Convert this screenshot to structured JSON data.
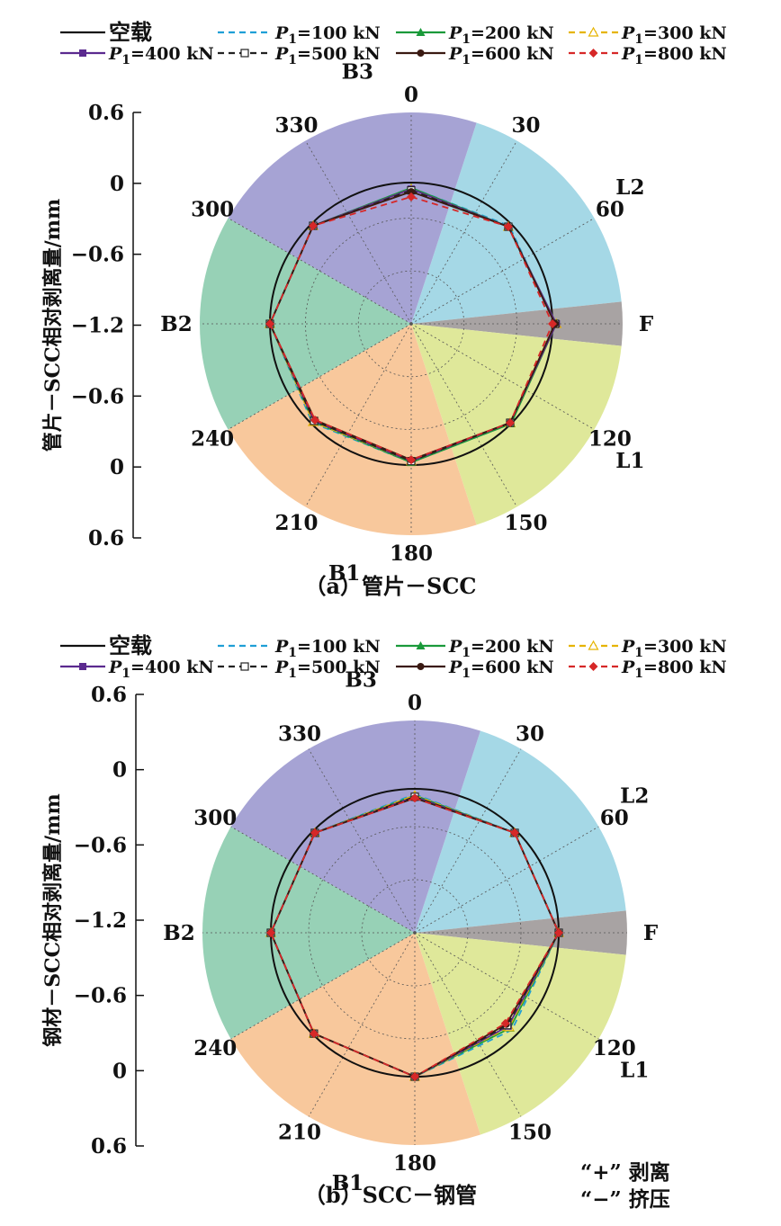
{
  "legend": {
    "entries": [
      {
        "label": "空载",
        "color": "#111111",
        "dash": "",
        "marker": "none"
      },
      {
        "label": "=100 kN",
        "color": "#1f9fd6",
        "dash": "7,5",
        "marker": "none"
      },
      {
        "label": "=200 kN",
        "color": "#1a9a3a",
        "dash": "",
        "marker": "tri"
      },
      {
        "label": "=300 kN",
        "color": "#e6b400",
        "dash": "7,5",
        "marker": "tri-open"
      },
      {
        "label": "=400 kN",
        "color": "#5b2a8f",
        "dash": "",
        "marker": "square"
      },
      {
        "label": "=500 kN",
        "color": "#222222",
        "dash": "7,5",
        "marker": "square-open"
      },
      {
        "label": "=600 kN",
        "color": "#3a1a12",
        "dash": "",
        "marker": "circle"
      },
      {
        "label": "=800 kN",
        "color": "#d62828",
        "dash": "7,5",
        "marker": "diamond"
      }
    ],
    "p_symbol": "P",
    "p_subscript": "1"
  },
  "chart_data": [
    {
      "type": "line",
      "subtype": "polar",
      "caption": "（a）管片－SCC",
      "ylabel": "管片－SCC相对剥离量/mm",
      "radial_ticks": [
        "0.6",
        "0",
        "−0.6",
        "−1.2",
        "−0.6",
        "0",
        "0.6"
      ],
      "radial_range": [
        -1.2,
        0.6
      ],
      "angle_ticks": [
        "0",
        "30",
        "60",
        "120",
        "150",
        "180",
        "210",
        "240",
        "300",
        "330"
      ],
      "sectors": [
        {
          "label": "L2",
          "from": 18,
          "to": 84,
          "color": "#a5d8e6"
        },
        {
          "label": "F",
          "from": 84,
          "to": 96,
          "color": "#a8a3a3"
        },
        {
          "label": "L1",
          "from": 96,
          "to": 162,
          "color": "#dfe89a"
        },
        {
          "label": "B1",
          "from": 162,
          "to": 240,
          "color": "#f8c89c"
        },
        {
          "label": "B2",
          "from": 240,
          "to": 300,
          "color": "#97d1b6"
        },
        {
          "label": "B3",
          "from": 300,
          "to": 378,
          "color": "#a6a3d4"
        }
      ],
      "angles": [
        0,
        45,
        90,
        135,
        180,
        225,
        270,
        315
      ],
      "series": [
        {
          "name": "空载",
          "values": [
            0,
            0,
            0,
            0,
            0,
            0,
            0,
            0
          ]
        },
        {
          "name": "P1=100 kN",
          "values": [
            -0.04,
            -0.02,
            0.02,
            0.0,
            -0.02,
            -0.01,
            0.0,
            -0.02
          ]
        },
        {
          "name": "P1=200 kN",
          "values": [
            -0.04,
            -0.03,
            0.03,
            0.0,
            -0.02,
            -0.02,
            0.0,
            -0.02
          ]
        },
        {
          "name": "P1=300 kN",
          "values": [
            -0.05,
            -0.03,
            0.03,
            -0.01,
            -0.03,
            -0.02,
            0.0,
            -0.02
          ]
        },
        {
          "name": "P1=400 kN",
          "values": [
            -0.05,
            -0.03,
            0.03,
            -0.01,
            -0.03,
            -0.03,
            0.0,
            -0.02
          ]
        },
        {
          "name": "P1=500 kN",
          "values": [
            -0.06,
            -0.03,
            0.02,
            -0.01,
            -0.03,
            -0.03,
            0.0,
            -0.02
          ]
        },
        {
          "name": "P1=600 kN",
          "values": [
            -0.07,
            -0.03,
            0.02,
            -0.01,
            -0.04,
            -0.04,
            0.0,
            -0.02
          ]
        },
        {
          "name": "P1=800 kN",
          "values": [
            -0.11,
            -0.03,
            0.0,
            -0.01,
            -0.04,
            -0.04,
            0.0,
            -0.02
          ]
        }
      ]
    },
    {
      "type": "line",
      "subtype": "polar",
      "caption": "（b）SCC－钢管",
      "ylabel": "钢材－SCC相对剥离量/mm",
      "radial_ticks": [
        "0.6",
        "0",
        "−0.6",
        "−1.2",
        "−0.6",
        "0",
        "0.6"
      ],
      "radial_range": [
        -1.2,
        0.6
      ],
      "angle_ticks": [
        "0",
        "30",
        "60",
        "120",
        "150",
        "180",
        "210",
        "240",
        "300",
        "330"
      ],
      "sectors": [
        {
          "label": "L2",
          "from": 18,
          "to": 84,
          "color": "#a5d8e6"
        },
        {
          "label": "F",
          "from": 84,
          "to": 96,
          "color": "#a8a3a3"
        },
        {
          "label": "L1",
          "from": 96,
          "to": 162,
          "color": "#dfe89a"
        },
        {
          "label": "B1",
          "from": 162,
          "to": 240,
          "color": "#f8c89c"
        },
        {
          "label": "B2",
          "from": 240,
          "to": 300,
          "color": "#97d1b6"
        },
        {
          "label": "B3",
          "from": 300,
          "to": 378,
          "color": "#a6a3d4"
        }
      ],
      "angles": [
        0,
        45,
        90,
        135,
        180,
        225,
        270,
        315
      ],
      "series": [
        {
          "name": "空载",
          "values": [
            0,
            0,
            0,
            0,
            0,
            0,
            0,
            0
          ]
        },
        {
          "name": "P1=100 kN",
          "values": [
            -0.04,
            -0.02,
            0.0,
            -0.05,
            0.0,
            -0.01,
            0.0,
            -0.02
          ]
        },
        {
          "name": "P1=200 kN",
          "values": [
            -0.05,
            -0.02,
            0.0,
            -0.07,
            0.0,
            -0.01,
            0.0,
            -0.02
          ]
        },
        {
          "name": "P1=300 kN",
          "values": [
            -0.05,
            -0.02,
            0.0,
            -0.08,
            0.0,
            -0.01,
            0.0,
            -0.02
          ]
        },
        {
          "name": "P1=400 kN",
          "values": [
            -0.06,
            -0.02,
            0.0,
            -0.09,
            0.0,
            -0.01,
            0.0,
            -0.02
          ]
        },
        {
          "name": "P1=500 kN",
          "values": [
            -0.06,
            -0.02,
            0.0,
            -0.1,
            0.0,
            -0.01,
            0.0,
            -0.02
          ]
        },
        {
          "name": "P1=600 kN",
          "values": [
            -0.07,
            -0.02,
            0.0,
            -0.11,
            0.0,
            -0.01,
            0.0,
            -0.02
          ]
        },
        {
          "name": "P1=800 kN",
          "values": [
            -0.07,
            -0.02,
            0.0,
            -0.12,
            0.0,
            -0.01,
            0.0,
            -0.02
          ]
        }
      ]
    }
  ],
  "note": {
    "line1": "“+” 剥离",
    "line2": "“−” 挤压"
  }
}
